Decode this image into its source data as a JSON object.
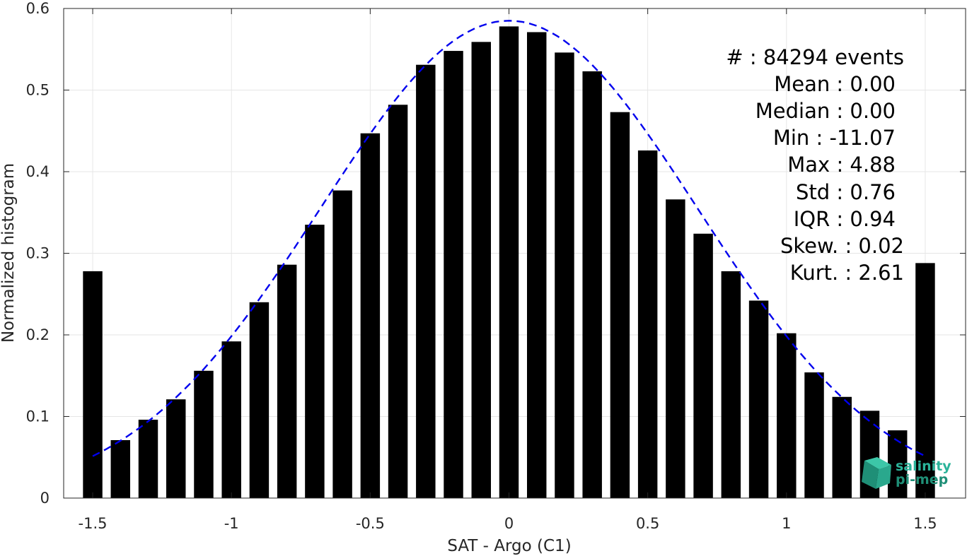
{
  "chart_data": {
    "type": "bar",
    "xlabel": "SAT - Argo (C1)",
    "ylabel": "Normalized histogram",
    "xlim": [
      -1.55,
      1.55
    ],
    "ylim": [
      0,
      0.6
    ],
    "grid": true,
    "xticks": [
      -1.5,
      -1,
      -0.5,
      0,
      0.5,
      1,
      1.5
    ],
    "xtick_labels": [
      "-1.5",
      "-1",
      "-0.5",
      "0",
      "0.5",
      "1",
      "1.5"
    ],
    "yticks": [
      0,
      0.1,
      0.2,
      0.3,
      0.4,
      0.5,
      0.6
    ],
    "ytick_labels": [
      "0",
      "0.1",
      "0.2",
      "0.3",
      "0.4",
      "0.5",
      "0.6"
    ],
    "bar_width": 0.07,
    "bar_color": "#000000",
    "x": [
      -1.5,
      -1.4,
      -1.3,
      -1.2,
      -1.1,
      -1.0,
      -0.9,
      -0.8,
      -0.7,
      -0.6,
      -0.5,
      -0.4,
      -0.3,
      -0.2,
      -0.1,
      0.0,
      0.1,
      0.2,
      0.3,
      0.4,
      0.5,
      0.6,
      0.7,
      0.8,
      0.9,
      1.0,
      1.1,
      1.2,
      1.3,
      1.4,
      1.5
    ],
    "values": [
      0.278,
      0.071,
      0.096,
      0.121,
      0.156,
      0.192,
      0.24,
      0.286,
      0.335,
      0.377,
      0.447,
      0.482,
      0.531,
      0.548,
      0.559,
      0.578,
      0.571,
      0.546,
      0.523,
      0.473,
      0.426,
      0.366,
      0.324,
      0.278,
      0.242,
      0.202,
      0.154,
      0.124,
      0.107,
      0.083,
      0.288
    ],
    "fit": {
      "style": "dashed",
      "color": "#0000ee",
      "mean": 0.0,
      "std": 0.68,
      "peak": 0.585,
      "xrange": [
        -1.5,
        1.5
      ]
    },
    "annotations": [
      "#  : 84294 events",
      "Mean : 0.00",
      "Median : 0.00",
      "Min : -11.07",
      "Max : 4.88",
      "Std : 0.76",
      "IQR : 0.94",
      "Skew. : 0.02",
      "Kurt. : 2.61"
    ]
  },
  "logo": {
    "line1": "salinity",
    "line2": "pi-mep",
    "color": "#2bb39a"
  }
}
